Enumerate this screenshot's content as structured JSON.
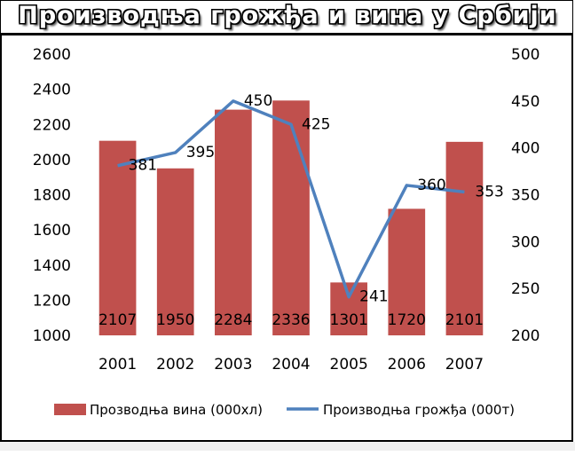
{
  "title": "Производња грожђа и вина у Србији",
  "chart_data": {
    "type": "bar+line",
    "categories": [
      "2001",
      "2002",
      "2003",
      "2004",
      "2005",
      "2006",
      "2007"
    ],
    "series": [
      {
        "name": "Прозводња вина (000хл)",
        "type": "bar",
        "axis": "left",
        "color": "#C0504D",
        "values": [
          2107,
          1950,
          2284,
          2336,
          1301,
          1720,
          2101
        ]
      },
      {
        "name": "Производња грожђа (000т)",
        "type": "line",
        "axis": "right",
        "color": "#4F81BD",
        "values": [
          381,
          395,
          450,
          425,
          241,
          360,
          353
        ]
      }
    ],
    "y_left": {
      "min": 1000,
      "max": 2600,
      "ticks": [
        "1000",
        "1200",
        "1400",
        "1600",
        "1800",
        "2000",
        "2200",
        "2400",
        "2600"
      ]
    },
    "y_right": {
      "min": 200,
      "max": 500,
      "ticks": [
        "200",
        "250",
        "300",
        "350",
        "400",
        "450",
        "500"
      ]
    },
    "grid": "none",
    "legend_position": "bottom"
  }
}
